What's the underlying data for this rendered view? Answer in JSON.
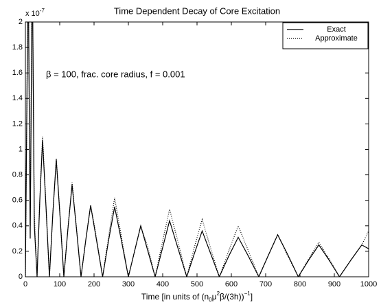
{
  "chart_data": {
    "type": "line",
    "title": "Time Dependent Decay of Core Excitation",
    "axis_multiplier": {
      "base": "x 10",
      "exponent": "-7"
    },
    "xlabel": [
      "Time [in units of (n",
      "0",
      "μ",
      "2",
      "β/(3h))",
      "−1",
      "]"
    ],
    "annotation": "β = 100, frac. core radius, f = 0.001",
    "x": [
      0,
      8,
      14,
      20,
      26,
      34,
      42,
      50,
      60,
      70,
      80,
      90,
      101,
      112,
      124,
      136,
      149,
      162,
      176,
      190,
      207,
      225,
      242,
      260,
      280,
      300,
      318,
      336,
      357,
      378,
      399,
      420,
      445,
      470,
      492,
      515,
      540,
      565,
      592,
      620,
      650,
      680,
      708,
      735,
      765,
      795,
      825,
      855,
      885,
      915,
      948,
      980,
      1000
    ],
    "series": [
      {
        "name": "Exact",
        "color": "#000000",
        "style": "solid",
        "values": [
          0,
          2.5,
          0.3,
          2.5,
          0.4,
          0,
          0.6,
          1.07,
          0.55,
          0,
          0.5,
          0.92,
          0.47,
          0,
          0.38,
          0.72,
          0.37,
          0,
          0.29,
          0.56,
          0.29,
          0,
          0.28,
          0.55,
          0.28,
          0,
          0.2,
          0.4,
          0.2,
          0,
          0.22,
          0.44,
          0.22,
          0,
          0.18,
          0.36,
          0.18,
          0,
          0.16,
          0.31,
          0.16,
          0,
          0.17,
          0.33,
          0.17,
          0,
          0.13,
          0.25,
          0.13,
          0,
          0.13,
          0.25,
          0.22
        ]
      },
      {
        "name": "Approximate",
        "color": "#000000",
        "style": "dotted",
        "values": [
          0,
          2.5,
          0.4,
          2.5,
          0.5,
          0,
          0.62,
          1.1,
          0.56,
          0,
          0.5,
          0.93,
          0.48,
          0,
          0.38,
          0.74,
          0.38,
          0,
          0.29,
          0.56,
          0.31,
          0,
          0.31,
          0.62,
          0.31,
          0,
          0.2,
          0.4,
          0.23,
          0,
          0.27,
          0.53,
          0.27,
          0,
          0.23,
          0.45,
          0.22,
          0,
          0.2,
          0.4,
          0.2,
          0,
          0.17,
          0.33,
          0.16,
          0,
          0.14,
          0.27,
          0.14,
          0,
          0.13,
          0.25,
          0.36
        ]
      }
    ],
    "xlim": [
      0,
      1000
    ],
    "xticks": [
      0,
      100,
      200,
      300,
      400,
      500,
      600,
      700,
      800,
      900,
      1000
    ],
    "ylim": [
      0,
      2
    ],
    "yticks": [
      0,
      0.2,
      0.4,
      0.6,
      0.8,
      1,
      1.2,
      1.4,
      1.6,
      1.8,
      2
    ],
    "grid": false,
    "legend": "upper right"
  }
}
